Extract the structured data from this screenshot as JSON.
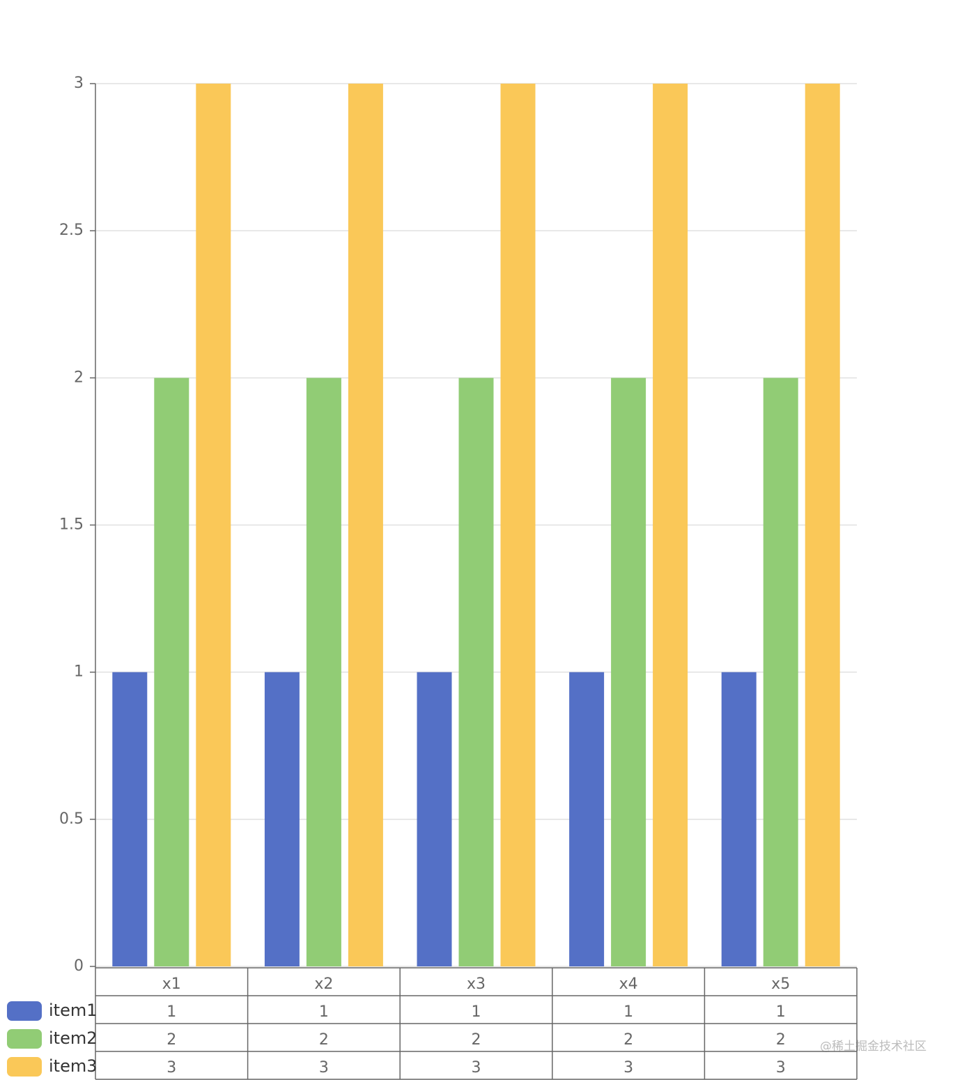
{
  "chart_data": {
    "type": "bar",
    "categories": [
      "x1",
      "x2",
      "x3",
      "x4",
      "x5"
    ],
    "series": [
      {
        "name": "item1",
        "color": "#5470c6",
        "values": [
          1,
          1,
          1,
          1,
          1
        ]
      },
      {
        "name": "item2",
        "color": "#91cc75",
        "values": [
          2,
          2,
          2,
          2,
          2
        ]
      },
      {
        "name": "item3",
        "color": "#fac858",
        "values": [
          3,
          3,
          3,
          3,
          3
        ]
      }
    ],
    "ylim": [
      0,
      3
    ],
    "yticks": [
      0,
      0.5,
      1,
      1.5,
      2,
      2.5,
      3
    ],
    "grid": true,
    "watermark": "@稀土掘金技术社区"
  }
}
